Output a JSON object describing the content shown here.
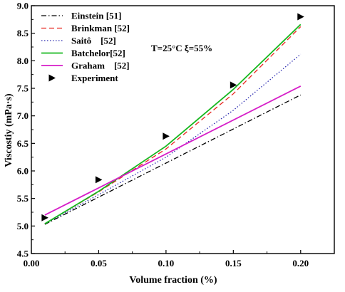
{
  "chart_data": {
    "type": "line",
    "xlabel": "Volume fraction (%)",
    "ylabel": "Viscostiy (mPa·s)",
    "xlim": [
      0.0,
      0.225
    ],
    "ylim": [
      4.5,
      9.0
    ],
    "xticks": [
      0.0,
      0.05,
      0.1,
      0.15,
      0.2
    ],
    "xtick_labels": [
      "0.00",
      "0.05",
      "0.10",
      "0.15",
      "0.20"
    ],
    "yticks": [
      4.5,
      5.0,
      5.5,
      6.0,
      6.5,
      7.0,
      7.5,
      8.0,
      8.5,
      9.0
    ],
    "ytick_labels": [
      "4.5",
      "5.0",
      "5.5",
      "6.0",
      "6.5",
      "7.0",
      "7.5",
      "8.0",
      "8.5",
      "9.0"
    ],
    "grid": false,
    "legend_position": "top-left",
    "annotation": "T=25°C  ξ=55%",
    "series": [
      {
        "name": "Einstein [51]",
        "style": "dashdot",
        "color": "#000000",
        "marker": "none",
        "x": [
          0.01,
          0.2
        ],
        "y": [
          5.03,
          7.38
        ]
      },
      {
        "name": "Brinkman [52]",
        "style": "dashed",
        "color": "#e8251e",
        "marker": "none",
        "x": [
          0.01,
          0.05,
          0.1,
          0.15,
          0.2
        ],
        "y": [
          5.04,
          5.62,
          6.4,
          7.4,
          8.62
        ]
      },
      {
        "name": "Saitô    [52]",
        "style": "dotted",
        "color": "#2b2bb0",
        "marker": "none",
        "x": [
          0.01,
          0.05,
          0.1,
          0.15,
          0.2
        ],
        "y": [
          5.04,
          5.57,
          6.25,
          7.1,
          8.12
        ]
      },
      {
        "name": "Batchelor[52]",
        "style": "solid",
        "color": "#16b81f",
        "marker": "none",
        "x": [
          0.01,
          0.05,
          0.1,
          0.15,
          0.2
        ],
        "y": [
          5.04,
          5.63,
          6.45,
          7.48,
          8.66
        ]
      },
      {
        "name": "Graham    [52]",
        "style": "solid",
        "color": "#d61ec8",
        "marker": "none",
        "x": [
          0.01,
          0.2
        ],
        "y": [
          5.2,
          7.54
        ]
      },
      {
        "name": "Experiment",
        "style": "none",
        "color": "#000000",
        "marker": "triangle-right",
        "x": [
          0.01,
          0.05,
          0.1,
          0.15,
          0.2
        ],
        "y": [
          5.15,
          5.84,
          6.63,
          7.56,
          8.8
        ]
      }
    ]
  }
}
